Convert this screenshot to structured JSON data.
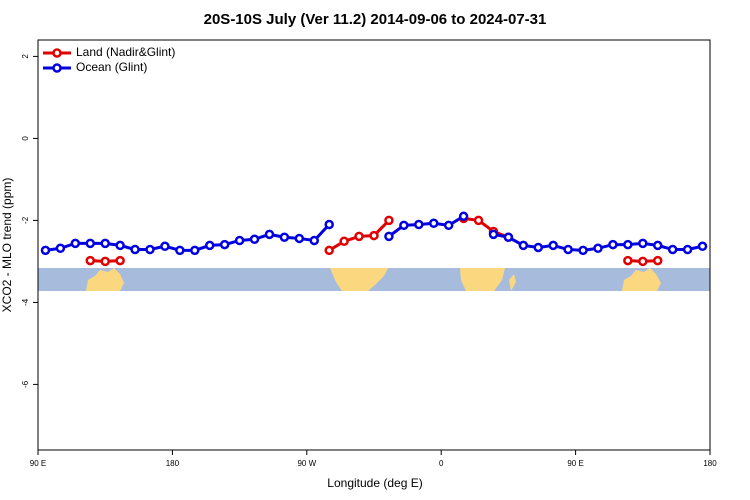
{
  "chart_data": {
    "type": "line",
    "title": "20S-10S July (Ver 11.2)   2014-09-06 to 2024-07-31",
    "x_label": "Longitude (deg E)",
    "y_label": "XCO2 - MLO trend (ppm)",
    "x": [
      95,
      105,
      115,
      125,
      135,
      145,
      155,
      165,
      175,
      185,
      195,
      205,
      215,
      225,
      235,
      245,
      255,
      265,
      275,
      285,
      295,
      305,
      315,
      325,
      335,
      345,
      355,
      365,
      375,
      385,
      395,
      405,
      415,
      425,
      435,
      445,
      455,
      465,
      475,
      485,
      495,
      505,
      515,
      525,
      535
    ],
    "series": [
      {
        "name": "Land (Nadir&Glint)",
        "color": "#e00000",
        "values": [
          null,
          null,
          null,
          -2.98,
          -3.0,
          -2.98,
          null,
          null,
          null,
          null,
          null,
          null,
          null,
          null,
          null,
          null,
          null,
          null,
          null,
          -2.73,
          -2.51,
          -2.39,
          -2.37,
          -2.0,
          null,
          null,
          null,
          null,
          -1.95,
          -2.0,
          -2.27,
          -2.41,
          null,
          null,
          null,
          null,
          null,
          null,
          null,
          -2.98,
          -3.0,
          -2.98,
          null,
          null,
          null
        ]
      },
      {
        "name": "Ocean (Glint)",
        "color": "#0000e0",
        "values": [
          -2.73,
          -2.68,
          -2.56,
          -2.56,
          -2.56,
          -2.61,
          -2.71,
          -2.71,
          -2.63,
          -2.73,
          -2.73,
          -2.61,
          -2.59,
          -2.49,
          -2.46,
          -2.34,
          -2.41,
          -2.44,
          -2.49,
          -2.1,
          null,
          null,
          null,
          -2.39,
          -2.12,
          -2.1,
          -2.07,
          -2.12,
          -1.9,
          null,
          -2.34,
          -2.41,
          -2.61,
          -2.66,
          -2.61,
          -2.71,
          -2.73,
          -2.68,
          -2.59,
          -2.59,
          -2.56,
          -2.61,
          -2.71,
          -2.71,
          -2.63
        ]
      }
    ],
    "xlim": [
      90,
      540
    ],
    "xticks": [
      {
        "value": 90,
        "label": "90 E"
      },
      180,
      {
        "value": 270,
        "label": "90 W"
      },
      {
        "value": 360,
        "label": "0"
      },
      {
        "value": 450,
        "label": "90 E"
      },
      {
        "value": 540,
        "label": "180"
      }
    ],
    "ylim": [
      -7.6,
      2.4
    ],
    "yticks": [
      -6,
      -4,
      -2,
      0,
      2
    ],
    "legend": "top-left"
  }
}
